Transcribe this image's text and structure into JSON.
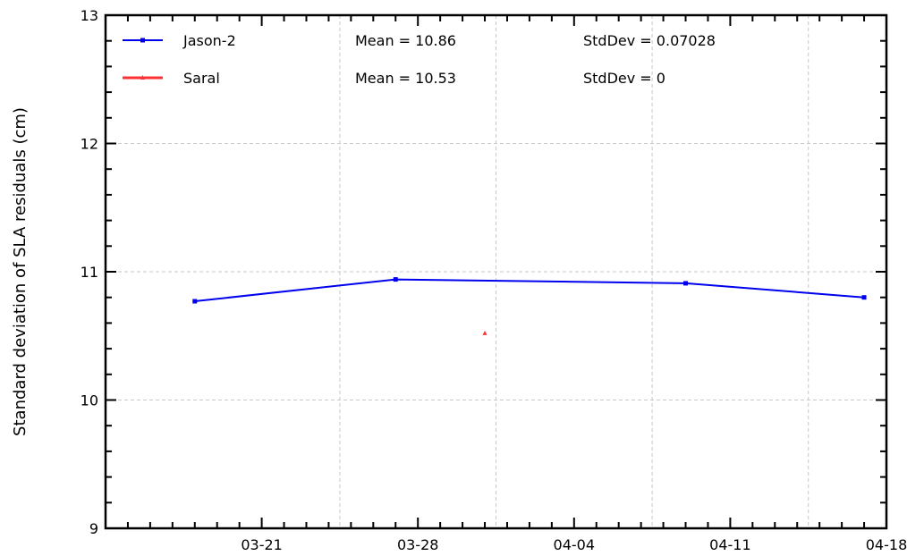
{
  "chart_data": {
    "type": "line",
    "title": "",
    "xlabel": "",
    "ylabel": "Standard deviation of SLA residuals (cm)",
    "ylim": [
      9,
      13
    ],
    "xlim": [
      "2013-03-14",
      "2013-04-18"
    ],
    "yticks": [
      "9",
      "10",
      "11",
      "12",
      "13"
    ],
    "xticks": [
      {
        "date": "2013-03-21",
        "label": "03-21"
      },
      {
        "date": "2013-03-28",
        "label": "03-28"
      },
      {
        "date": "2013-04-04",
        "label": "04-04"
      },
      {
        "date": "2013-04-11",
        "label": "04-11"
      },
      {
        "date": "2013-04-18",
        "label": "04-18"
      }
    ],
    "grid": true,
    "legend_position": "top-left",
    "series": [
      {
        "name": "Jason-2",
        "color": "#0000ee",
        "marker": "square",
        "mean_label": "Mean = 10.86",
        "stddev_label": "StdDev = 0.07028",
        "points": [
          {
            "x": "2013-03-18",
            "y": 10.77
          },
          {
            "x": "2013-03-27",
            "y": 10.94
          },
          {
            "x": "2013-04-09",
            "y": 10.91
          },
          {
            "x": "2013-04-17",
            "y": 10.8
          }
        ]
      },
      {
        "name": "Saral",
        "color": "#ff3333",
        "marker": "triangle",
        "mean_label": "Mean = 10.53",
        "stddev_label": "StdDev = 0",
        "points": [
          {
            "x": "2013-03-31",
            "y": 10.52
          }
        ]
      }
    ]
  }
}
